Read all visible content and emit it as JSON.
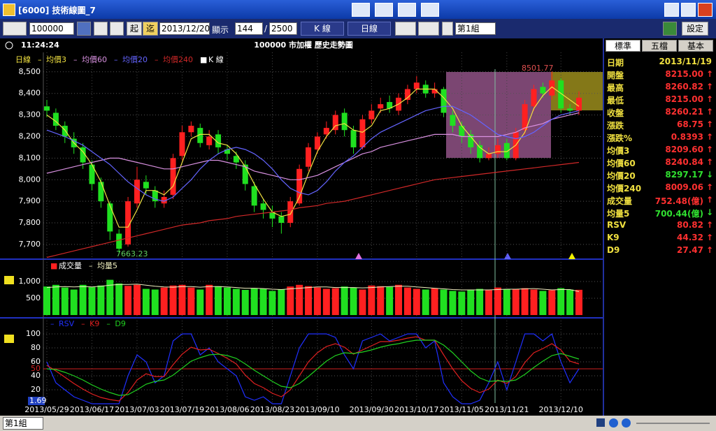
{
  "window": {
    "title": "[6000] 技術線圖_7"
  },
  "toolbar": {
    "symbol": "100000",
    "start": "起",
    "end": "迄",
    "date": "2013/12/20",
    "show": "顯示",
    "count": "144",
    "sep": "/",
    "total": "2500",
    "ktype": "K 線",
    "period": "日線",
    "group": "第1組",
    "settings": "設定"
  },
  "header": {
    "time": "11:24:24",
    "title": "100000 市加權  歷史走勢圖"
  },
  "tabs": [
    "標準",
    "五檔",
    "基本"
  ],
  "quote": {
    "header": {
      "label": "日期",
      "value": "2013/11/19"
    },
    "rows": [
      {
        "label": "開盤",
        "value": "8215.00",
        "arrow": "↑",
        "color": "#ff3030"
      },
      {
        "label": "最高",
        "value": "8260.82",
        "arrow": "↑",
        "color": "#ff3030"
      },
      {
        "label": "最低",
        "value": "8215.00",
        "arrow": "↑",
        "color": "#ff3030"
      },
      {
        "label": "收盤",
        "value": "8260.21",
        "arrow": "↑",
        "color": "#ff3030"
      },
      {
        "label": "漲跌",
        "value": "68.75",
        "arrow": "↑",
        "color": "#ff3030"
      },
      {
        "label": "漲跌%",
        "value": "0.8393",
        "arrow": "↑",
        "color": "#ff3030"
      },
      {
        "label": "均價3",
        "value": "8209.60",
        "arrow": "↑",
        "color": "#ff3030"
      },
      {
        "label": "均價60",
        "value": "8240.84",
        "arrow": "↑",
        "color": "#ff3030"
      },
      {
        "label": "均價20",
        "value": "8297.17",
        "arrow": "↓",
        "color": "#30e030"
      },
      {
        "label": "均價240",
        "value": "8009.06",
        "arrow": "↑",
        "color": "#ff3030"
      },
      {
        "label": "成交量",
        "value": "752.48(億)",
        "arrow": "↑",
        "color": "#ff3030"
      },
      {
        "label": "均量5",
        "value": "700.44(億)",
        "arrow": "↓",
        "color": "#30e030"
      },
      {
        "label": "RSV",
        "value": "80.82",
        "arrow": "↑",
        "color": "#ff3030"
      },
      {
        "label": "K9",
        "value": "44.32",
        "arrow": "↑",
        "color": "#ff3030"
      },
      {
        "label": "D9",
        "value": "27.47",
        "arrow": "↑",
        "color": "#ff3030"
      }
    ]
  },
  "footer": {
    "group": "第1組"
  },
  "chart_data": [
    {
      "type": "candlestick",
      "period_label": "日線",
      "candle_name": "K 線",
      "up_color": "#ff2020",
      "down_color": "#20e020",
      "annotations": [
        "8501.77",
        "7663.23"
      ],
      "open": [
        8340,
        8310,
        8250,
        8190,
        8150,
        8070,
        7990,
        7890,
        7750,
        7700,
        7890,
        7990,
        7950,
        7890,
        7930,
        8110,
        8220,
        8240,
        8160,
        8210,
        8140,
        8110,
        8070,
        7970,
        7890,
        7850,
        7830,
        7800,
        7890,
        8060,
        8140,
        8210,
        8230,
        8310,
        8230,
        8150,
        8280,
        8330,
        8360,
        8320,
        8370,
        8420,
        8440,
        8400,
        8420,
        8300,
        8250,
        8210,
        8160,
        8100,
        8120,
        8170,
        8100,
        8230,
        8340,
        8430,
        8390,
        8460,
        8330,
        8320
      ],
      "high": [
        8370,
        8330,
        8270,
        8220,
        8170,
        8090,
        8010,
        7900,
        7770,
        7920,
        8060,
        8020,
        7970,
        7950,
        8120,
        8250,
        8270,
        8260,
        8230,
        8230,
        8160,
        8130,
        8090,
        7990,
        7910,
        7880,
        7850,
        7920,
        8070,
        8170,
        8220,
        8270,
        8320,
        8330,
        8250,
        8300,
        8350,
        8380,
        8390,
        8400,
        8440,
        8480,
        8460,
        8450,
        8430,
        8320,
        8270,
        8230,
        8180,
        8150,
        8190,
        8190,
        8240,
        8370,
        8440,
        8450,
        8501.77,
        8470,
        8350,
        8410
      ],
      "low": [
        8290,
        8230,
        8170,
        8120,
        8050,
        7950,
        7870,
        7720,
        7663.23,
        7690,
        7870,
        7930,
        7870,
        7870,
        7910,
        8090,
        8200,
        8150,
        8140,
        8120,
        8090,
        8050,
        7950,
        7850,
        7820,
        7780,
        7750,
        7780,
        7880,
        8040,
        8120,
        8190,
        8210,
        8200,
        8120,
        8140,
        8260,
        8310,
        8310,
        8300,
        8350,
        8400,
        8380,
        8380,
        8290,
        8220,
        8170,
        8120,
        8080,
        8090,
        8100,
        8090,
        8090,
        8210,
        8320,
        8380,
        8370,
        8310,
        8300,
        8300
      ],
      "close": [
        8320,
        8250,
        8200,
        8150,
        8080,
        7980,
        7900,
        7760,
        7680,
        7900,
        8000,
        7960,
        7900,
        7920,
        8100,
        8220,
        8250,
        8170,
        8200,
        8150,
        8120,
        8080,
        7980,
        7880,
        7860,
        7820,
        7800,
        7900,
        8050,
        8150,
        8200,
        8240,
        8300,
        8230,
        8150,
        8280,
        8320,
        8350,
        8330,
        8380,
        8420,
        8450,
        8400,
        8420,
        8310,
        8250,
        8200,
        8150,
        8100,
        8120,
        8160,
        8100,
        8220,
        8350,
        8420,
        8400,
        8460,
        8330,
        8320,
        8380
      ],
      "series": [
        {
          "name": "均價3",
          "color": "#f0e040",
          "values": [
            8300,
            8270,
            8230,
            8170,
            8130,
            8070,
            7990,
            7880,
            7780,
            7780,
            7860,
            7950,
            7950,
            7930,
            7970,
            8080,
            8190,
            8210,
            8210,
            8170,
            8160,
            8120,
            8060,
            7980,
            7910,
            7850,
            7830,
            7840,
            7920,
            8030,
            8130,
            8200,
            8250,
            8260,
            8230,
            8220,
            8250,
            8320,
            8330,
            8350,
            8380,
            8420,
            8420,
            8420,
            8380,
            8330,
            8250,
            8200,
            8150,
            8120,
            8130,
            8130,
            8160,
            8220,
            8330,
            8390,
            8430,
            8400,
            8370,
            8340
          ]
        },
        {
          "name": "均價60",
          "color": "#d890e0",
          "values": [
            8030,
            8040,
            8050,
            8060,
            8070,
            8080,
            8090,
            8100,
            8100,
            8090,
            8080,
            8070,
            8060,
            8050,
            8050,
            8060,
            8070,
            8080,
            8090,
            8090,
            8080,
            8070,
            8060,
            8040,
            8030,
            8020,
            8010,
            8000,
            8000,
            8010,
            8020,
            8040,
            8060,
            8080,
            8100,
            8120,
            8130,
            8150,
            8160,
            8170,
            8180,
            8190,
            8200,
            8210,
            8210,
            8210,
            8200,
            8200,
            8200,
            8200,
            8200,
            8210,
            8220,
            8240,
            8250,
            8260,
            8280,
            8290,
            8300,
            8310
          ]
        },
        {
          "name": "均價20",
          "color": "#6464ff",
          "values": [
            8230,
            8215,
            8200,
            8180,
            8160,
            8130,
            8100,
            8070,
            8030,
            7990,
            7960,
            7930,
            7910,
            7900,
            7920,
            7960,
            8000,
            8050,
            8090,
            8120,
            8140,
            8150,
            8140,
            8120,
            8090,
            8050,
            8000,
            7960,
            7940,
            7930,
            7950,
            7990,
            8040,
            8080,
            8110,
            8150,
            8190,
            8220,
            8240,
            8260,
            8280,
            8300,
            8320,
            8330,
            8340,
            8340,
            8320,
            8300,
            8270,
            8240,
            8210,
            8200,
            8190,
            8200,
            8220,
            8250,
            8280,
            8300,
            8310,
            8320
          ]
        },
        {
          "name": "均價240",
          "color": "#d02828",
          "values": [
            7640,
            7650,
            7660,
            7670,
            7680,
            7690,
            7700,
            7710,
            7720,
            7730,
            7740,
            7750,
            7760,
            7770,
            7780,
            7790,
            7795,
            7800,
            7810,
            7815,
            7820,
            7830,
            7835,
            7840,
            7845,
            7850,
            7855,
            7860,
            7870,
            7875,
            7880,
            7890,
            7895,
            7900,
            7910,
            7920,
            7930,
            7940,
            7950,
            7960,
            7970,
            7980,
            7990,
            8000,
            8005,
            8010,
            8015,
            8020,
            8025,
            8030,
            8035,
            8040,
            8045,
            8050,
            8055,
            8060,
            8065,
            8070,
            8075,
            8080
          ]
        }
      ],
      "ylim": [
        7635,
        8590
      ],
      "yticks": [
        {
          "value": 7700,
          "label": "7,700"
        },
        {
          "value": 7800,
          "label": "7,800"
        },
        {
          "value": 7900,
          "label": "7,900"
        },
        {
          "value": 8000,
          "label": "8,000"
        },
        {
          "value": 8100,
          "label": "8,100"
        },
        {
          "value": 8200,
          "label": "8,200"
        },
        {
          "value": 8300,
          "label": "8,300"
        },
        {
          "value": 8400,
          "label": "8,400"
        },
        {
          "value": 8500,
          "label": "8,500"
        }
      ],
      "grid": true
    },
    {
      "type": "bar",
      "series": [
        {
          "name": "成交量",
          "values": [
            850,
            900,
            820,
            760,
            900,
            830,
            880,
            1050,
            940,
            870,
            900,
            780,
            760,
            820,
            880,
            900,
            820,
            760,
            900,
            860,
            820,
            780,
            750,
            800,
            780,
            720,
            760,
            850,
            900,
            860,
            820,
            780,
            800,
            850,
            820,
            760,
            880,
            860,
            840,
            900,
            820,
            780,
            760,
            800,
            760,
            720,
            700,
            760,
            780,
            740,
            820,
            760,
            780,
            800,
            760,
            720,
            740,
            800,
            760,
            752.48
          ]
        },
        {
          "name": "均量5",
          "color": "#f0f0c0",
          "values": [
            820,
            840,
            850,
            840,
            850,
            840,
            860,
            890,
            910,
            910,
            920,
            890,
            860,
            840,
            830,
            850,
            850,
            830,
            850,
            850,
            840,
            820,
            800,
            800,
            790,
            770,
            760,
            780,
            800,
            820,
            840,
            840,
            820,
            820,
            820,
            810,
            820,
            840,
            850,
            860,
            860,
            840,
            820,
            800,
            780,
            760,
            750,
            750,
            750,
            750,
            760,
            770,
            770,
            780,
            790,
            770,
            750,
            760,
            760,
            700.44
          ]
        }
      ],
      "ylim": [
        0,
        1520
      ],
      "yticks": [
        500,
        {
          "value": 1000,
          "label": "1,000"
        }
      ],
      "grid": true
    },
    {
      "type": "line",
      "annotation": "1.69",
      "ref_line": 50,
      "ref_color": "#d02020",
      "categories": [
        "2013/05/29",
        null,
        null,
        null,
        null,
        "2013/06/17",
        null,
        null,
        null,
        null,
        "2013/07/03",
        null,
        null,
        null,
        null,
        "2013/07/19",
        null,
        null,
        null,
        null,
        "2013/08/06",
        null,
        null,
        null,
        null,
        "2013/08/23",
        null,
        null,
        null,
        null,
        "2013/09/10",
        null,
        null,
        null,
        null,
        null,
        "2013/09/30",
        null,
        null,
        null,
        null,
        "2013/10/17",
        null,
        null,
        null,
        null,
        "2013/11/05",
        null,
        null,
        null,
        null,
        "2013/11/21",
        null,
        null,
        null,
        null,
        null,
        "2013/12/10",
        null,
        null
      ],
      "series": [
        {
          "name": "RSV",
          "color": "#2030ff",
          "values": [
            60,
            30,
            20,
            10,
            5,
            0,
            0,
            0,
            0,
            40,
            70,
            60,
            30,
            40,
            90,
            100,
            100,
            70,
            80,
            60,
            50,
            40,
            10,
            5,
            10,
            0,
            0,
            40,
            80,
            100,
            100,
            100,
            95,
            70,
            50,
            90,
            95,
            100,
            90,
            95,
            100,
            100,
            80,
            90,
            30,
            10,
            0,
            0,
            5,
            30,
            60,
            20,
            60,
            100,
            100,
            90,
            100,
            60,
            30,
            50
          ]
        },
        {
          "name": "K9",
          "color": "#e02020",
          "values": [
            55,
            47,
            38,
            29,
            21,
            14,
            9,
            6,
            4,
            16,
            34,
            43,
            39,
            39,
            56,
            71,
            81,
            77,
            78,
            72,
            65,
            57,
            41,
            29,
            23,
            15,
            10,
            20,
            40,
            60,
            73,
            82,
            86,
            81,
            71,
            77,
            83,
            89,
            89,
            91,
            94,
            96,
            91,
            91,
            70,
            50,
            33,
            22,
            16,
            21,
            34,
            29,
            39,
            59,
            73,
            79,
            86,
            77,
            61,
            57
          ]
        },
        {
          "name": "D9",
          "color": "#20d020",
          "values": [
            50,
            49,
            45,
            40,
            34,
            27,
            21,
            16,
            12,
            13,
            20,
            28,
            32,
            34,
            41,
            51,
            61,
            66,
            70,
            71,
            69,
            65,
            57,
            48,
            40,
            32,
            25,
            23,
            29,
            39,
            50,
            61,
            69,
            73,
            72,
            74,
            77,
            81,
            84,
            86,
            89,
            91,
            91,
            91,
            84,
            73,
            60,
            47,
            37,
            32,
            33,
            32,
            34,
            42,
            52,
            61,
            69,
            72,
            68,
            64
          ]
        }
      ],
      "ylim": [
        3,
        118
      ],
      "yticks": [
        20,
        40,
        50,
        60,
        80,
        100
      ],
      "grid": true
    }
  ]
}
